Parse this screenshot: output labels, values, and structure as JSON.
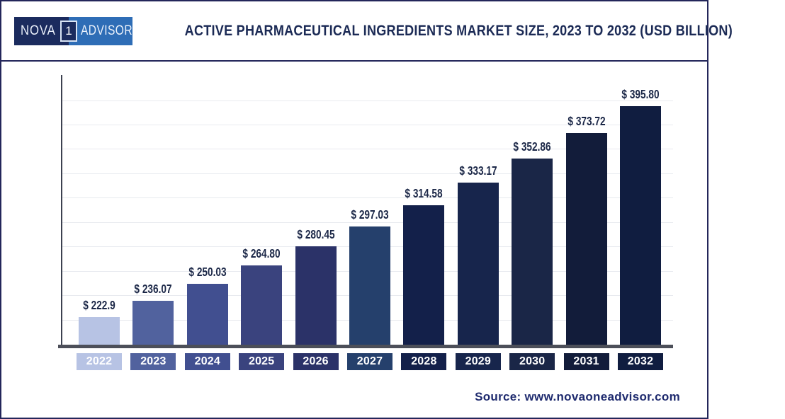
{
  "header": {
    "logo": {
      "left": "NOVA",
      "middle": "1",
      "right": "ADVISOR"
    },
    "title": "ACTIVE PHARMACEUTICAL INGREDIENTS MARKET SIZE, 2023 TO 2032 (USD BILLION)"
  },
  "chart_data": {
    "type": "bar",
    "title": "Active Pharmaceutical Ingredients Market Size, 2023 to 2032 (USD Billion)",
    "unit": "USD Billion",
    "categories": [
      "2022",
      "2023",
      "2024",
      "2025",
      "2026",
      "2027",
      "2028",
      "2029",
      "2030",
      "2031",
      "2032"
    ],
    "values": [
      222.9,
      236.07,
      250.03,
      264.8,
      280.45,
      297.03,
      314.58,
      333.17,
      352.86,
      373.72,
      395.8
    ],
    "value_labels": [
      "$ 222.9",
      "$ 236.07",
      "$ 250.03",
      "$ 264.80",
      "$ 280.45",
      "$ 297.03",
      "$ 314.58",
      "$ 333.17",
      "$ 352.86",
      "$ 373.72",
      "$ 395.80"
    ],
    "bar_colors": [
      "#b7c3e4",
      "#51629e",
      "#414f90",
      "#3a437e",
      "#2b3268",
      "#25406c",
      "#13204a",
      "#17254c",
      "#1a2647",
      "#121c3a",
      "#101d40"
    ],
    "ylim": [
      200,
      420
    ],
    "grid_step": 20,
    "grid": true,
    "legend": false,
    "xlabel": "",
    "ylabel": ""
  },
  "footer": {
    "source": "Source: www.novaoneadvisor.com"
  },
  "colors": {
    "frame-border": "#23265a",
    "logo-dark": "#1b2b5e",
    "logo-blue": "#2e6db6",
    "title": "#1b2a55",
    "label": "#1b2747",
    "axis": "#3c4150",
    "axis-bar": "#4c4f59",
    "grid": "#e8eaef",
    "tick-text": "#ffffff",
    "source": "#1e2a6e"
  }
}
